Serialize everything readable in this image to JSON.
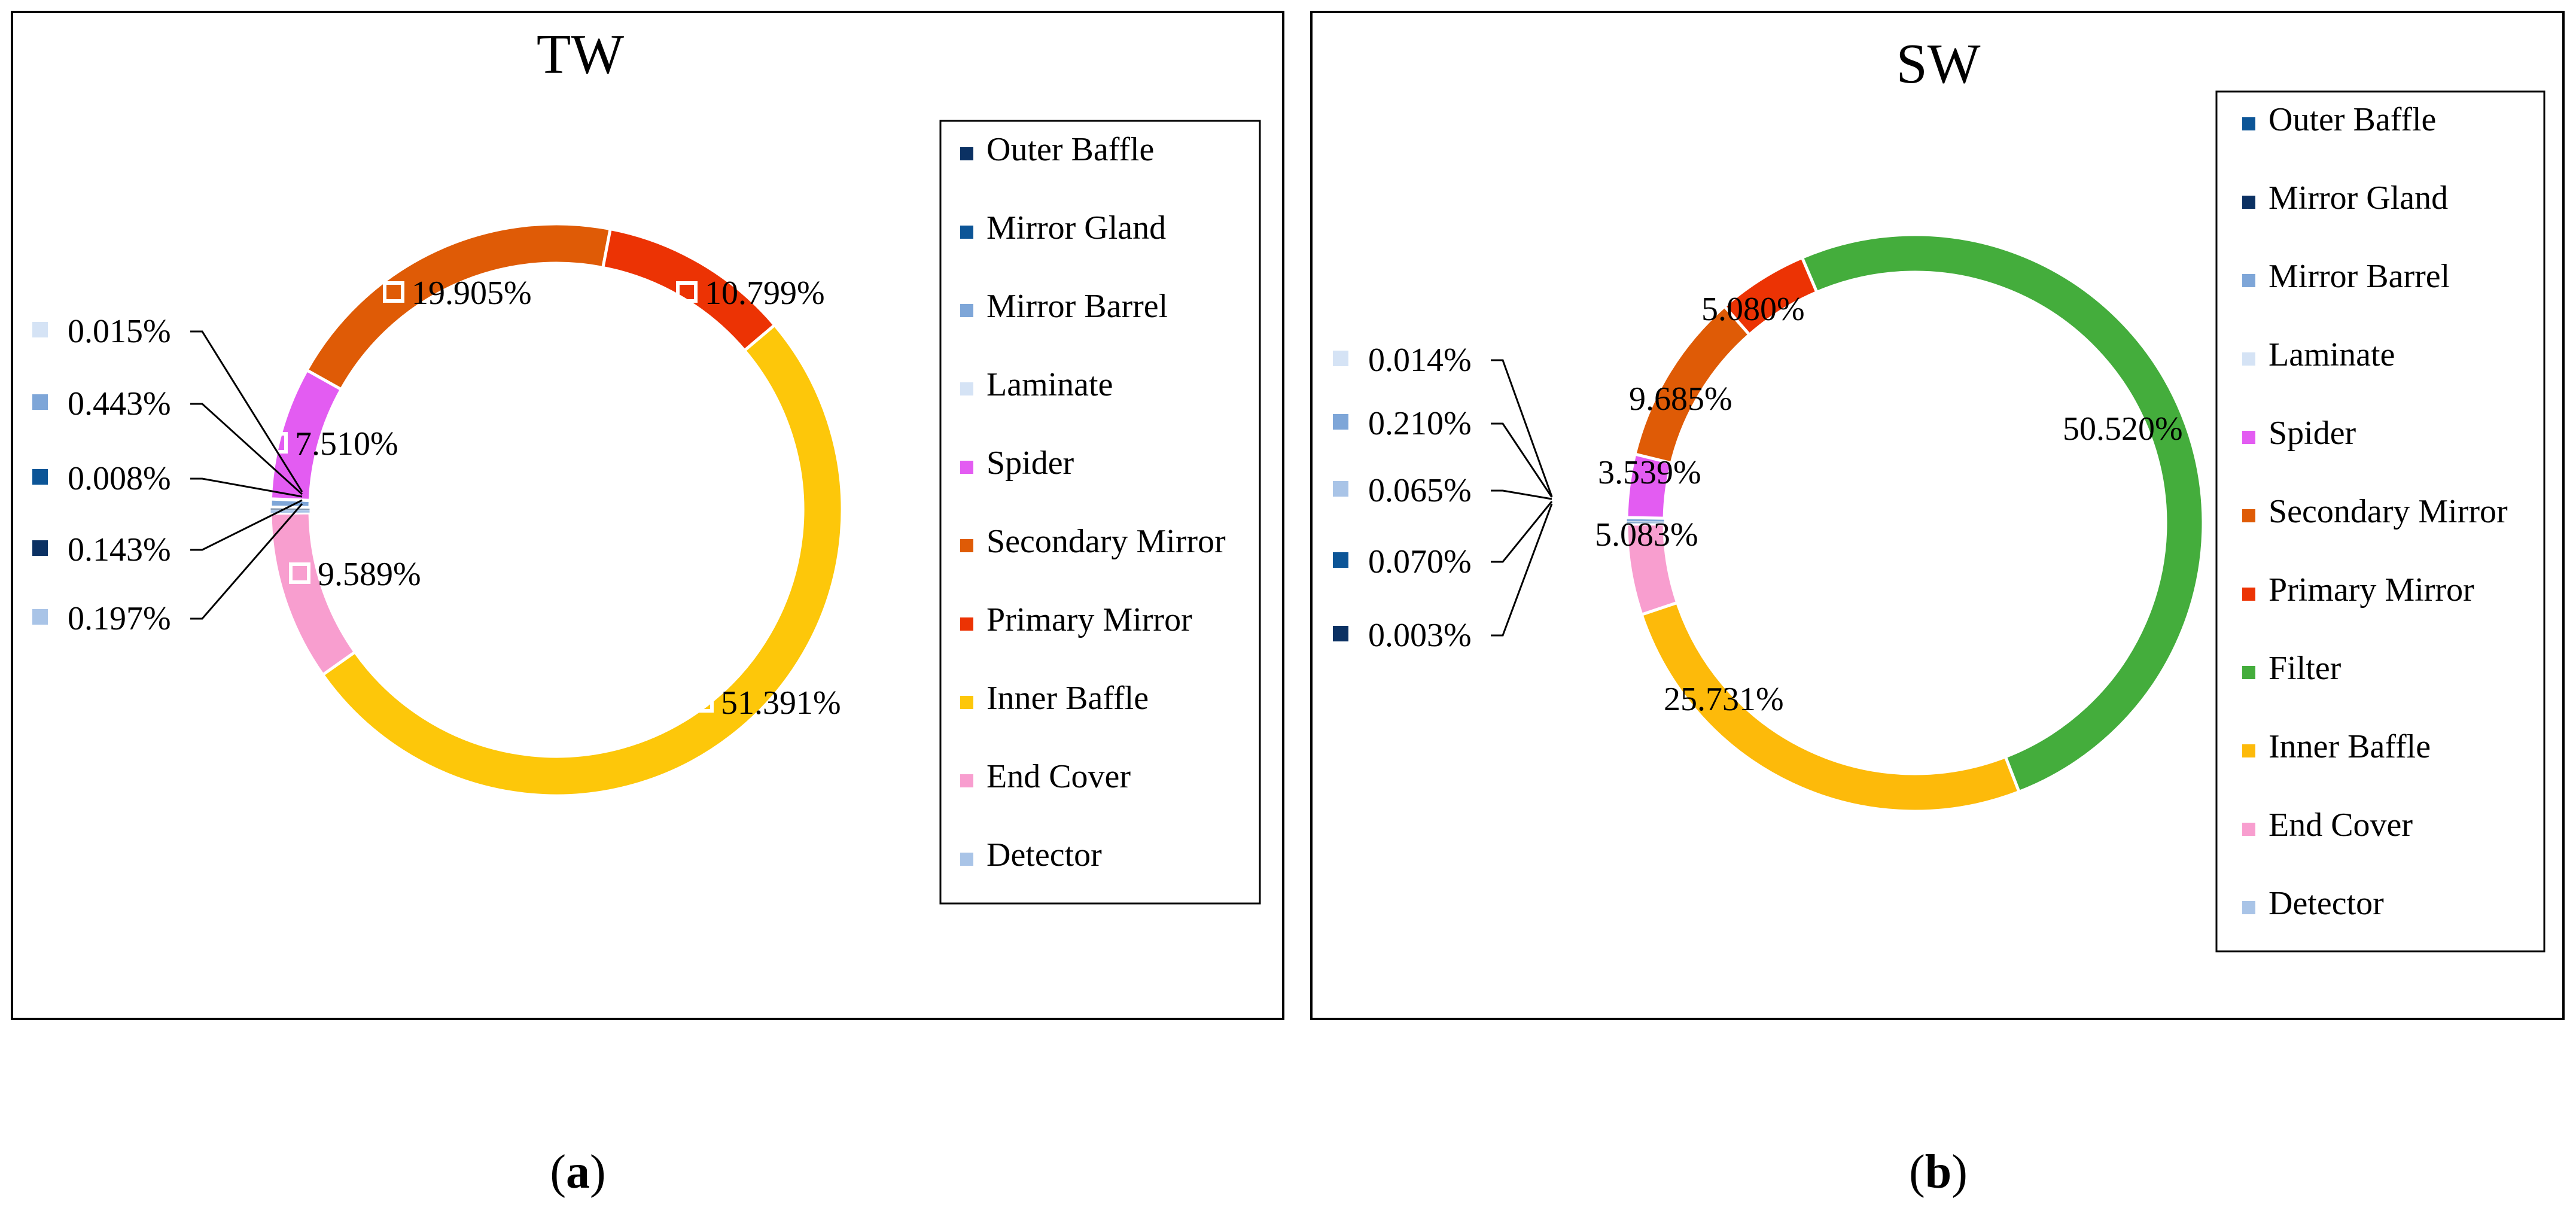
{
  "chart_data": [
    {
      "type": "pie",
      "variant": "donut",
      "title": "TW",
      "panel_label": "a",
      "legend_position": "right",
      "slices": [
        {
          "name": "Outer Baffle",
          "value": 0.143,
          "label": "0.143%",
          "color": "#0b3163"
        },
        {
          "name": "Mirror Gland",
          "value": 0.008,
          "label": "0.008%",
          "color": "#0c5597"
        },
        {
          "name": "Mirror Barrel",
          "value": 0.443,
          "label": "0.443%",
          "color": "#7ea6d8"
        },
        {
          "name": "Laminate",
          "value": 0.015,
          "label": "0.015%",
          "color": "#d5e3f5"
        },
        {
          "name": "Spider",
          "value": 7.51,
          "label": "7.510%",
          "color": "#e35cf2"
        },
        {
          "name": "Secondary Mirror",
          "value": 19.905,
          "label": "19.905%",
          "color": "#df5b06"
        },
        {
          "name": "Primary Mirror",
          "value": 10.799,
          "label": "10.799%",
          "color": "#ec3304"
        },
        {
          "name": "Inner Baffle",
          "value": 51.391,
          "label": "51.391%",
          "color": "#fdc70a"
        },
        {
          "name": "End Cover",
          "value": 9.589,
          "label": "9.589%",
          "color": "#f89ecf"
        },
        {
          "name": "Detector",
          "value": 0.197,
          "label": "0.197%",
          "color": "#a9c4e7"
        }
      ]
    },
    {
      "type": "pie",
      "variant": "donut",
      "title": "SW",
      "panel_label": "b",
      "legend_position": "right",
      "slices": [
        {
          "name": "Outer Baffle",
          "value": 0.07,
          "label": "0.070%",
          "color": "#0c5597"
        },
        {
          "name": "Mirror Gland",
          "value": 0.003,
          "label": "0.003%",
          "color": "#0b3163"
        },
        {
          "name": "Mirror Barrel",
          "value": 0.21,
          "label": "0.210%",
          "color": "#7ea6d8"
        },
        {
          "name": "Laminate",
          "value": 0.014,
          "label": "0.014%",
          "color": "#d5e3f5"
        },
        {
          "name": "Spider",
          "value": 3.539,
          "label": "3.539%",
          "color": "#e35cf2"
        },
        {
          "name": "Secondary Mirror",
          "value": 9.685,
          "label": "9.685%",
          "color": "#df5b06"
        },
        {
          "name": "Primary Mirror",
          "value": 5.08,
          "label": "5.080%",
          "color": "#ec3304"
        },
        {
          "name": "Filter",
          "value": 50.52,
          "label": "50.520%",
          "color": "#44ad3c"
        },
        {
          "name": "Inner Baffle",
          "value": 25.731,
          "label": "25.731%",
          "color": "#fdba0a"
        },
        {
          "name": "End Cover",
          "value": 5.083,
          "label": "5.083%",
          "color": "#f89ecf"
        },
        {
          "name": "Detector",
          "value": 0.065,
          "label": "0.065%",
          "color": "#a9c4e7"
        }
      ]
    }
  ]
}
